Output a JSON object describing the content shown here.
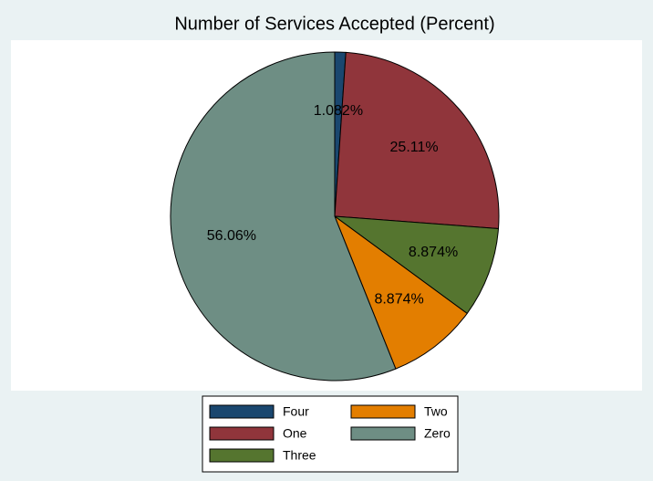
{
  "chart_data": {
    "type": "pie",
    "title": "Number of Services Accepted (Percent)",
    "categories": [
      "Four",
      "One",
      "Three",
      "Two",
      "Zero"
    ],
    "values": [
      1.082,
      25.11,
      8.874,
      8.874,
      56.06
    ],
    "value_labels": [
      "1.082%",
      "25.11%",
      "8.874%",
      "8.874%",
      "56.06%"
    ],
    "colors": [
      "#1a476f",
      "#90353b",
      "#55752f",
      "#e37e00",
      "#6e8e84"
    ],
    "legend": "bottom"
  }
}
